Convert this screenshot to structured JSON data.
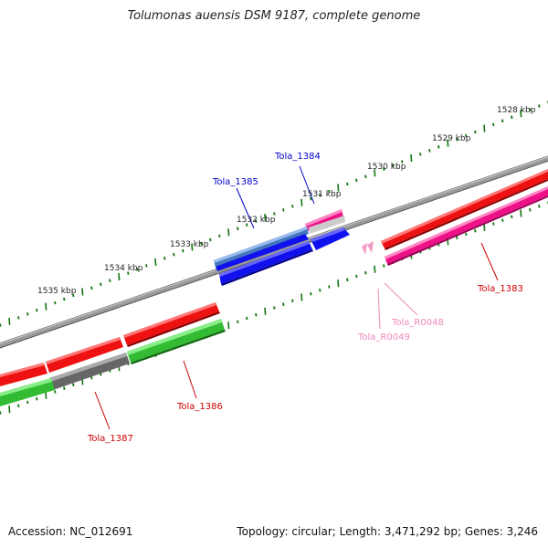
{
  "title": "Tolumonas auensis DSM 9187, complete genome",
  "footer": {
    "accession": "Accession: NC_012691",
    "summary": "Topology: circular; Length: 3,471,292 bp; Genes: 3,246"
  },
  "colors": {
    "backbone": "#8a8a8a",
    "gene_red": "#ee1111",
    "gene_pink": "#ee1188",
    "gene_blue": "#1111ee",
    "gene_steelblue": "#4477bb",
    "gene_green": "#33bb33",
    "gene_gray": "#666666",
    "rna_pink": "#f49ac6",
    "tick_green": "#117711",
    "label_red": "#cc0000",
    "label_blue": "#0000cc",
    "label_pink": "#ee88bb"
  },
  "ticks": [
    "1528 kbp",
    "1529 kbp",
    "1530 kbp",
    "1531 kbp",
    "1532 kbp",
    "1533 kbp",
    "1534 kbp",
    "1535 kbp"
  ],
  "genes": [
    "Tola_1383",
    "Tola_1384",
    "Tola_1385",
    "Tola_1386",
    "Tola_1387",
    "Tola_R0048",
    "Tola_R0049"
  ]
}
